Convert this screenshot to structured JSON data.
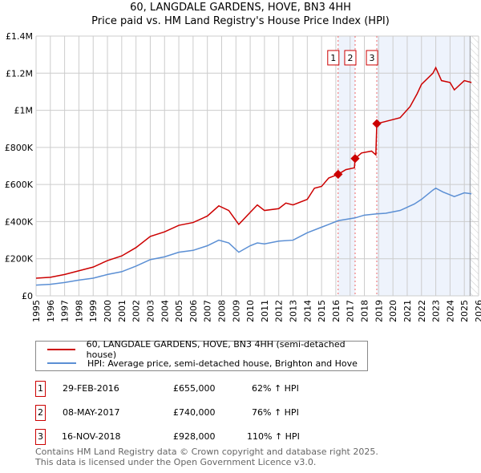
{
  "chart_data": {
    "type": "line",
    "title": "60, LANGDALE GARDENS, HOVE, BN3 4HH",
    "subtitle": "Price paid vs. HM Land Registry's House Price Index (HPI)",
    "xlim": [
      1995,
      2026
    ],
    "ylim": [
      0,
      1400000
    ],
    "x_ticks": [
      "1995",
      "1996",
      "1997",
      "1998",
      "1999",
      "2000",
      "2001",
      "2002",
      "2003",
      "2004",
      "2005",
      "2006",
      "2007",
      "2008",
      "2009",
      "2010",
      "2011",
      "2012",
      "2013",
      "2014",
      "2015",
      "2016",
      "2017",
      "2018",
      "2019",
      "2020",
      "2021",
      "2022",
      "2023",
      "2024",
      "2025",
      "2026"
    ],
    "y_ticks": [
      {
        "v": 0,
        "label": "£0"
      },
      {
        "v": 200000,
        "label": "£200K"
      },
      {
        "v": 400000,
        "label": "£400K"
      },
      {
        "v": 600000,
        "label": "£600K"
      },
      {
        "v": 800000,
        "label": "£800K"
      },
      {
        "v": 1000000,
        "label": "£1M"
      },
      {
        "v": 1200000,
        "label": "£1.2M"
      },
      {
        "v": 1400000,
        "label": "£1.4M"
      }
    ],
    "grid": true,
    "shaded_ranges": [
      [
        2016.16,
        2017.35
      ],
      [
        2018.87,
        2025.5
      ]
    ],
    "hatched_from": 2025.4,
    "series": [
      {
        "name": "60, LANGDALE GARDENS, HOVE, BN3 4HH (semi-detached house)",
        "color": "#cc0000",
        "points": [
          [
            1995,
            95000
          ],
          [
            1996,
            100000
          ],
          [
            1997,
            115000
          ],
          [
            1998,
            135000
          ],
          [
            1999,
            155000
          ],
          [
            2000,
            190000
          ],
          [
            2001,
            215000
          ],
          [
            2002,
            260000
          ],
          [
            2003,
            320000
          ],
          [
            2004,
            345000
          ],
          [
            2005,
            380000
          ],
          [
            2006,
            395000
          ],
          [
            2007,
            430000
          ],
          [
            2007.8,
            485000
          ],
          [
            2008.5,
            460000
          ],
          [
            2009.2,
            385000
          ],
          [
            2010,
            450000
          ],
          [
            2010.5,
            490000
          ],
          [
            2011,
            460000
          ],
          [
            2012,
            470000
          ],
          [
            2012.5,
            500000
          ],
          [
            2013,
            490000
          ],
          [
            2014,
            520000
          ],
          [
            2014.5,
            580000
          ],
          [
            2015,
            590000
          ],
          [
            2015.5,
            635000
          ],
          [
            2016.16,
            655000
          ],
          [
            2016.7,
            680000
          ],
          [
            2017.3,
            690000
          ],
          [
            2017.35,
            740000
          ],
          [
            2017.8,
            770000
          ],
          [
            2018.5,
            780000
          ],
          [
            2018.8,
            760000
          ],
          [
            2018.87,
            928000
          ],
          [
            2019.5,
            940000
          ],
          [
            2020.5,
            960000
          ],
          [
            2021.2,
            1020000
          ],
          [
            2021.7,
            1090000
          ],
          [
            2022,
            1140000
          ],
          [
            2022.8,
            1200000
          ],
          [
            2023,
            1230000
          ],
          [
            2023.4,
            1160000
          ],
          [
            2024,
            1150000
          ],
          [
            2024.3,
            1110000
          ],
          [
            2025,
            1160000
          ],
          [
            2025.5,
            1150000
          ]
        ]
      },
      {
        "name": "HPI: Average price, semi-detached house, Brighton and Hove",
        "color": "#5b8fd4",
        "points": [
          [
            1995,
            58000
          ],
          [
            1996,
            62000
          ],
          [
            1997,
            72000
          ],
          [
            1998,
            85000
          ],
          [
            1999,
            95000
          ],
          [
            2000,
            115000
          ],
          [
            2001,
            130000
          ],
          [
            2002,
            160000
          ],
          [
            2003,
            195000
          ],
          [
            2004,
            210000
          ],
          [
            2005,
            235000
          ],
          [
            2006,
            245000
          ],
          [
            2007,
            270000
          ],
          [
            2007.8,
            300000
          ],
          [
            2008.5,
            285000
          ],
          [
            2009.2,
            235000
          ],
          [
            2010,
            270000
          ],
          [
            2010.5,
            285000
          ],
          [
            2011,
            280000
          ],
          [
            2012,
            295000
          ],
          [
            2013,
            300000
          ],
          [
            2014,
            340000
          ],
          [
            2015,
            370000
          ],
          [
            2015.5,
            385000
          ],
          [
            2016.16,
            405000
          ],
          [
            2017.35,
            420000
          ],
          [
            2018,
            435000
          ],
          [
            2018.87,
            442000
          ],
          [
            2019.5,
            445000
          ],
          [
            2020.5,
            460000
          ],
          [
            2021.5,
            495000
          ],
          [
            2022,
            520000
          ],
          [
            2022.8,
            570000
          ],
          [
            2023,
            580000
          ],
          [
            2023.5,
            560000
          ],
          [
            2024.3,
            535000
          ],
          [
            2025,
            555000
          ],
          [
            2025.5,
            550000
          ]
        ]
      }
    ],
    "sales": [
      {
        "id": "1",
        "x": 2016.16,
        "y": 655000,
        "date": "29-FEB-2016",
        "price": "£655,000",
        "hpi": "62% ↑ HPI"
      },
      {
        "id": "2",
        "x": 2017.35,
        "y": 740000,
        "date": "08-MAY-2017",
        "price": "£740,000",
        "hpi": "76% ↑ HPI"
      },
      {
        "id": "3",
        "x": 2018.87,
        "y": 928000,
        "date": "16-NOV-2018",
        "price": "£928,000",
        "hpi": "110% ↑ HPI"
      }
    ]
  },
  "footer": [
    "Contains HM Land Registry data © Crown copyright and database right 2025.",
    "This data is licensed under the Open Government Licence v3.0."
  ]
}
